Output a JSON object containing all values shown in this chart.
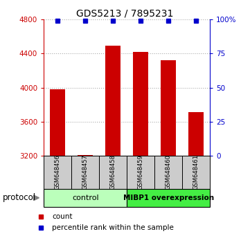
{
  "title": "GDS5213 / 7895231",
  "samples": [
    "GSM648456",
    "GSM648457",
    "GSM648458",
    "GSM648459",
    "GSM648460",
    "GSM648461"
  ],
  "counts": [
    3980,
    3210,
    4490,
    4420,
    4320,
    3710
  ],
  "percentile_ranks": [
    99,
    99,
    99,
    99,
    99,
    99
  ],
  "ylim_left": [
    3200,
    4800
  ],
  "ylim_right": [
    0,
    100
  ],
  "yticks_left": [
    3200,
    3600,
    4000,
    4400,
    4800
  ],
  "yticks_right": [
    0,
    25,
    50,
    75,
    100
  ],
  "bar_color": "#cc0000",
  "dot_color": "#0000cc",
  "bar_width": 0.55,
  "groups": [
    {
      "label": "control",
      "color": "#bbffbb",
      "dark_color": "#44dd44",
      "span": [
        0,
        3
      ]
    },
    {
      "label": "MIBP1 overexpression",
      "color": "#44ee44",
      "dark_color": "#44dd44",
      "span": [
        3,
        6
      ]
    }
  ],
  "protocol_label": "protocol",
  "legend_count_label": "count",
  "legend_pct_label": "percentile rank within the sample",
  "left_tick_color": "#cc0000",
  "right_tick_color": "#0000cc",
  "grid_color": "#aaaaaa",
  "sample_bg_color": "#cccccc"
}
